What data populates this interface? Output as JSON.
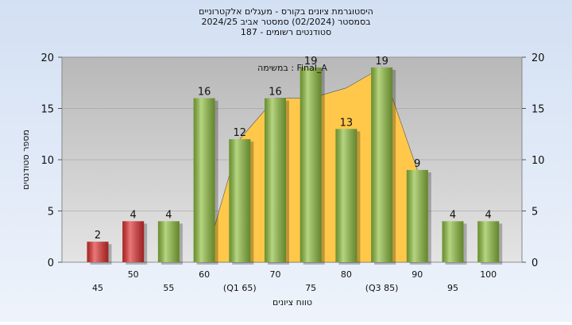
{
  "chart_data": {
    "type": "bar",
    "title": [
      "היסטוגרמת ציונים בקורס - מעגלים אלקטרוניים",
      "בסמסטר  (02/2024)  סמסטר אביב 2024/25",
      "סטודנטים רשומים - 187"
    ],
    "annotation": "במשימה : Final_A",
    "x_label": "טווח ציונים",
    "y_label": "מספר סטודנטים",
    "categories": [
      "45",
      "50",
      "55",
      "60",
      "(Q1 65)",
      "70",
      "75",
      "80",
      "(Q3 85)",
      "90",
      "95",
      "100"
    ],
    "values": [
      2,
      4,
      4,
      16,
      12,
      16,
      19,
      13,
      19,
      9,
      4,
      4
    ],
    "colors": [
      "#e03030",
      "#e03030",
      "#8fbf3f",
      "#8fbf3f",
      "#8fbf3f",
      "#8fbf3f",
      "#8fbf3f",
      "#8fbf3f",
      "#8fbf3f",
      "#8fbf3f",
      "#8fbf3f",
      "#8fbf3f"
    ],
    "area": {
      "color": "#ffc84a",
      "values": [
        null,
        null,
        null,
        0,
        12,
        16,
        16,
        17,
        19,
        9,
        null,
        null
      ]
    },
    "ylim": [
      0,
      20
    ],
    "yticks": [
      0,
      5,
      10,
      15,
      20
    ],
    "y2lim": [
      0,
      20
    ],
    "y2ticks": [
      0,
      5,
      10,
      15,
      20
    ],
    "grid": true
  }
}
